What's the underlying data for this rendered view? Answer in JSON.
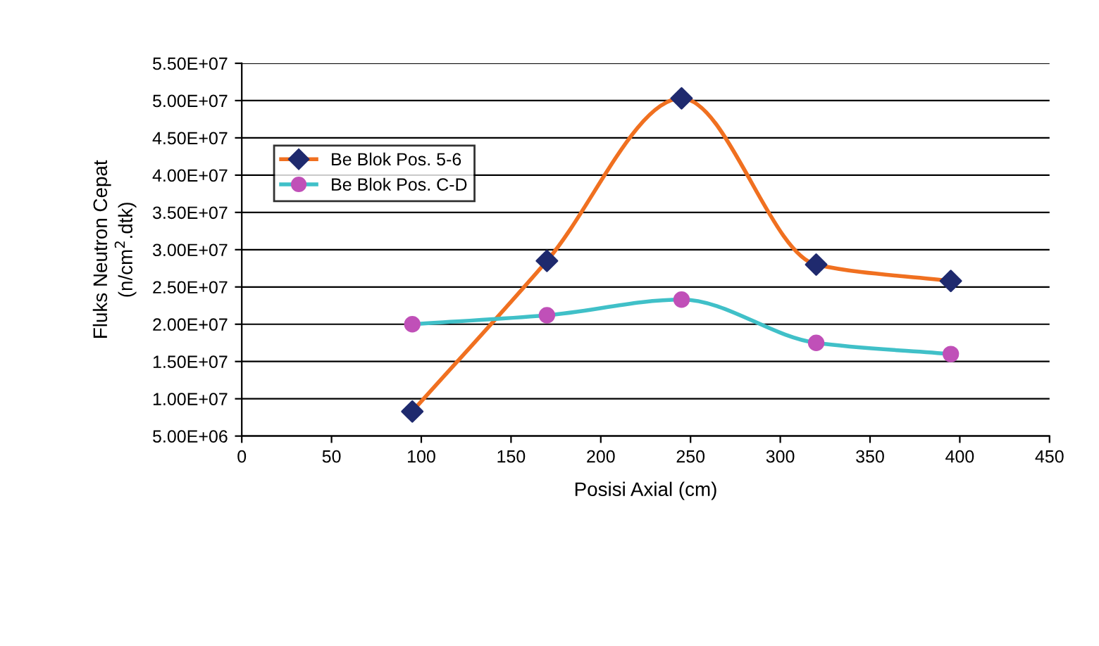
{
  "chart_data": {
    "type": "line",
    "xlabel": "Posisi Axial (cm)",
    "ylabel": "Fluks Neutron Cepat\n(n/cm$^{2}$.dtk)",
    "x": [
      95,
      170,
      245,
      320,
      395
    ],
    "series": [
      {
        "name": "Be Blok Pos. 5-6",
        "color": "#f07020",
        "colors": [
          "#1f2a6e",
          "#1f2a6e",
          "#1f2a6e",
          "#1f2a6e",
          "#1f2a6e"
        ],
        "marker": "diamond",
        "values": [
          8300000,
          28500000,
          50300000,
          28000000,
          25800000
        ]
      },
      {
        "name": "Be Blok Pos. C-D",
        "color": "#40c0c8",
        "colors": [
          "#c050b8",
          "#c050b8",
          "#c050b8",
          "#c050b8",
          "#c050b8"
        ],
        "marker": "circle",
        "values": [
          20000000,
          21200000,
          23300000,
          17500000,
          16000000
        ]
      }
    ],
    "xlim": [
      0,
      450
    ],
    "xticks": [
      0,
      50,
      100,
      150,
      200,
      250,
      300,
      350,
      400,
      450
    ],
    "ylim": [
      5000000,
      55000000
    ],
    "yticks": [
      {
        "value": 5000000,
        "label": "5.00E+06"
      },
      {
        "value": 10000000,
        "label": "1.00E+07"
      },
      {
        "value": 15000000,
        "label": "1.50E+07"
      },
      {
        "value": 20000000,
        "label": "2.00E+07"
      },
      {
        "value": 25000000,
        "label": "2.50E+07"
      },
      {
        "value": 30000000,
        "label": "3.00E+07"
      },
      {
        "value": 35000000,
        "label": "3.50E+07"
      },
      {
        "value": 40000000,
        "label": "4.00E+07"
      },
      {
        "value": 45000000,
        "label": "4.50E+07"
      },
      {
        "value": 50000000,
        "label": "5.00E+07"
      },
      {
        "value": 55000000,
        "label": "5.50E+07"
      }
    ],
    "grid": "y",
    "legend": "top left",
    "line_style": "solid"
  }
}
